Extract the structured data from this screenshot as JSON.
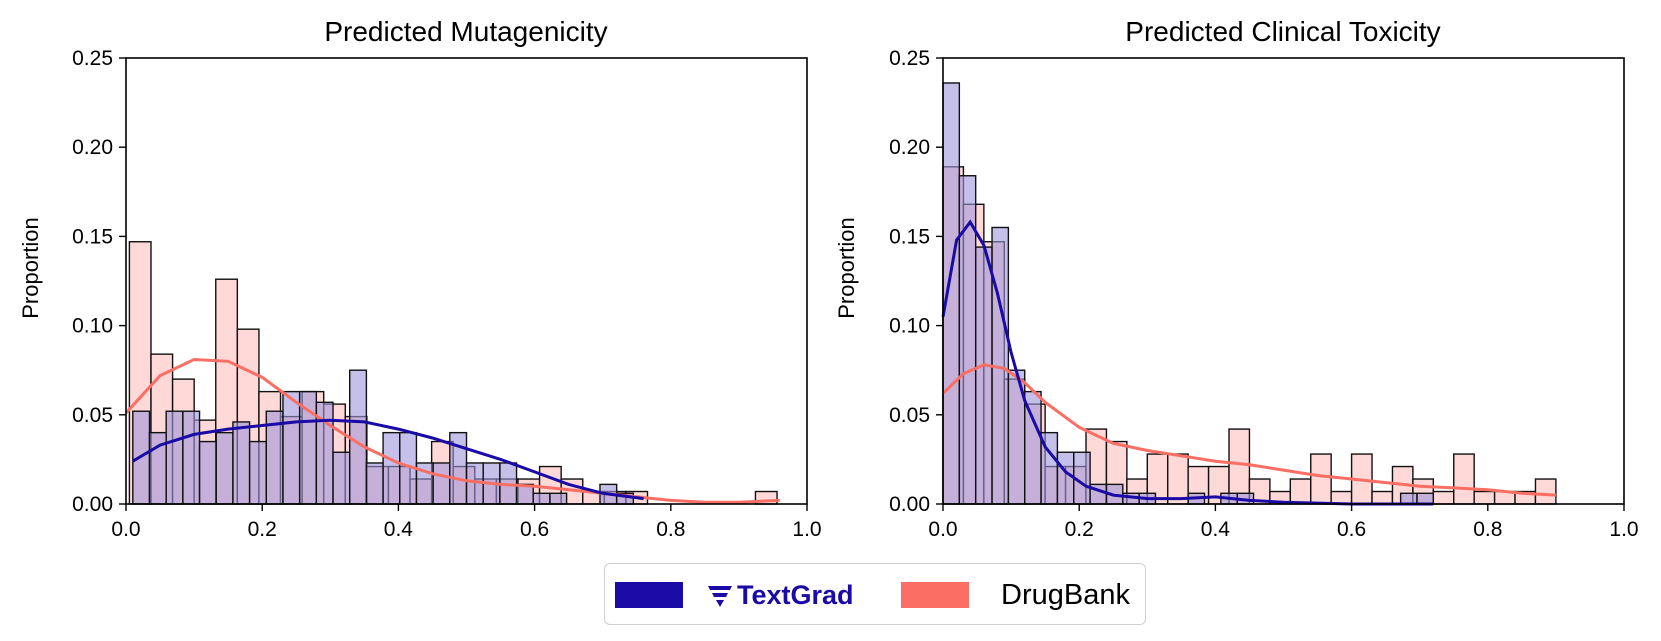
{
  "colors": {
    "textgrad": "#1a0aa6",
    "drugbank": "#fa6e64"
  },
  "legend": {
    "textgrad_label": "TextGrad",
    "drugbank_label": "DrugBank",
    "textgrad_icon": "textgrad-logo-icon"
  },
  "chart_data": [
    {
      "type": "bar",
      "title": "Predicted Mutagenicity",
      "xlabel": "",
      "ylabel": "Proportion",
      "xlim": [
        0,
        1.0
      ],
      "ylim": [
        0,
        0.25
      ],
      "xticks": [
        "0.0",
        "0.2",
        "0.4",
        "0.6",
        "0.8",
        "1.0"
      ],
      "yticks": [
        "0.00",
        "0.05",
        "0.10",
        "0.15",
        "0.20",
        "0.25"
      ],
      "grid": false,
      "legend": "bottom-center",
      "series": [
        {
          "name": "TextGrad",
          "bin_start": 0.01,
          "bin_width": 0.0245,
          "values": [
            0.052,
            0.04,
            0.052,
            0.052,
            0.035,
            0.04,
            0.046,
            0.035,
            0.052,
            0.063,
            0.063,
            0.057,
            0.029,
            0.075,
            0.023,
            0.04,
            0.04,
            0.023,
            0.023,
            0.04,
            0.023,
            0.023,
            0.023,
            0.011,
            0.006,
            0.006,
            0.0,
            0.0,
            0.011,
            0.006
          ],
          "kde": {
            "x": [
              0.01,
              0.05,
              0.1,
              0.15,
              0.2,
              0.25,
              0.3,
              0.35,
              0.4,
              0.45,
              0.5,
              0.55,
              0.6,
              0.65,
              0.7,
              0.76
            ],
            "y": [
              0.024,
              0.033,
              0.039,
              0.042,
              0.044,
              0.046,
              0.047,
              0.046,
              0.042,
              0.037,
              0.031,
              0.025,
              0.018,
              0.011,
              0.006,
              0.003
            ]
          }
        },
        {
          "name": "DrugBank",
          "bin_start": 0.005,
          "bin_width": 0.0317,
          "values": [
            0.147,
            0.084,
            0.07,
            0.047,
            0.126,
            0.098,
            0.063,
            0.049,
            0.063,
            0.056,
            0.049,
            0.021,
            0.021,
            0.014,
            0.035,
            0.021,
            0.014,
            0.014,
            0.014,
            0.021,
            0.014,
            0.007,
            0.007,
            0.007,
            0.0,
            0.0,
            0.0,
            0.0,
            0.0,
            0.007
          ],
          "kde": {
            "x": [
              0.0,
              0.05,
              0.1,
              0.15,
              0.2,
              0.25,
              0.3,
              0.35,
              0.4,
              0.45,
              0.5,
              0.55,
              0.6,
              0.65,
              0.7,
              0.75,
              0.8,
              0.85,
              0.9,
              0.96
            ],
            "y": [
              0.051,
              0.072,
              0.081,
              0.08,
              0.071,
              0.057,
              0.044,
              0.032,
              0.023,
              0.017,
              0.013,
              0.011,
              0.01,
              0.008,
              0.006,
              0.004,
              0.002,
              0.001,
              0.001,
              0.002
            ]
          }
        }
      ]
    },
    {
      "type": "bar",
      "title": "Predicted Clinical Toxicity",
      "xlabel": "",
      "ylabel": "Proportion",
      "xlim": [
        0,
        1.0
      ],
      "ylim": [
        0,
        0.25
      ],
      "xticks": [
        "0.0",
        "0.2",
        "0.4",
        "0.6",
        "0.8",
        "1.0"
      ],
      "yticks": [
        "0.00",
        "0.05",
        "0.10",
        "0.15",
        "0.20",
        "0.25"
      ],
      "grid": false,
      "legend": "bottom-center",
      "series": [
        {
          "name": "TextGrad",
          "bin_start": 0.0,
          "bin_width": 0.024,
          "values": [
            0.236,
            0.184,
            0.144,
            0.155,
            0.075,
            0.063,
            0.04,
            0.029,
            0.029,
            0.011,
            0.011,
            0.006,
            0.006,
            0.0,
            0.0,
            0.006,
            0.0,
            0.006,
            0.006,
            0.0,
            0.0,
            0.0,
            0.0,
            0.0,
            0.0,
            0.0,
            0.0,
            0.0,
            0.006,
            0.006
          ],
          "kde": {
            "x": [
              0.0,
              0.02,
              0.04,
              0.06,
              0.08,
              0.1,
              0.12,
              0.15,
              0.18,
              0.21,
              0.25,
              0.3,
              0.35,
              0.4,
              0.45,
              0.5,
              0.6,
              0.72
            ],
            "y": [
              0.105,
              0.148,
              0.158,
              0.145,
              0.118,
              0.085,
              0.058,
              0.032,
              0.018,
              0.01,
              0.005,
              0.003,
              0.003,
              0.004,
              0.002,
              0.001,
              0.0,
              0.0
            ]
          }
        },
        {
          "name": "DrugBank",
          "bin_start": 0.0,
          "bin_width": 0.03,
          "values": [
            0.189,
            0.168,
            0.147,
            0.07,
            0.056,
            0.021,
            0.021,
            0.042,
            0.035,
            0.014,
            0.028,
            0.028,
            0.021,
            0.021,
            0.042,
            0.014,
            0.007,
            0.014,
            0.028,
            0.007,
            0.028,
            0.007,
            0.021,
            0.014,
            0.007,
            0.028,
            0.007,
            0.007,
            0.007,
            0.014
          ],
          "kde": {
            "x": [
              0.0,
              0.03,
              0.06,
              0.09,
              0.12,
              0.15,
              0.2,
              0.25,
              0.3,
              0.35,
              0.4,
              0.45,
              0.5,
              0.55,
              0.6,
              0.65,
              0.7,
              0.75,
              0.8,
              0.85,
              0.9
            ],
            "y": [
              0.062,
              0.073,
              0.078,
              0.076,
              0.068,
              0.057,
              0.043,
              0.034,
              0.03,
              0.027,
              0.024,
              0.022,
              0.019,
              0.016,
              0.014,
              0.012,
              0.01,
              0.009,
              0.008,
              0.006,
              0.005
            ]
          }
        }
      ]
    }
  ]
}
